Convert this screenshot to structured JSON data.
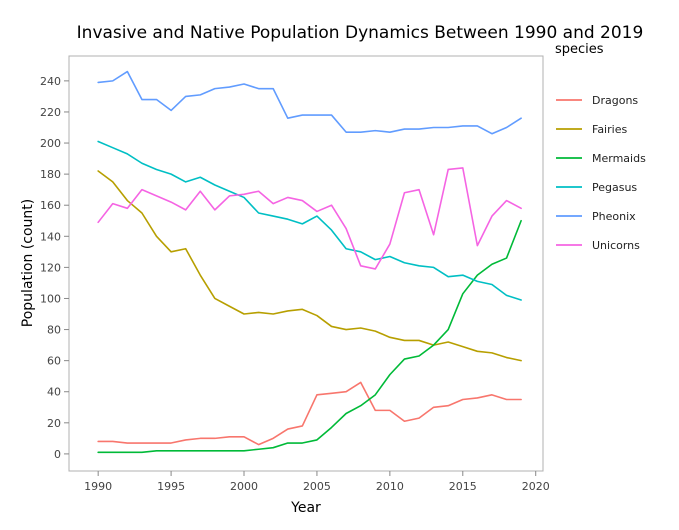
{
  "chart_data": {
    "type": "line",
    "title": "Invasive and Native Population Dynamics Between 1990 and 2019",
    "xlabel": "Year",
    "ylabel": "Population (count)",
    "xlim": [
      1988,
      2020.5
    ],
    "ylim": [
      -11,
      256
    ],
    "xticks": [
      1990,
      1995,
      2000,
      2005,
      2010,
      2015,
      2020
    ],
    "yticks": [
      0,
      20,
      40,
      60,
      80,
      100,
      120,
      140,
      160,
      180,
      200,
      220,
      240
    ],
    "grid": false,
    "legend": {
      "title": "species",
      "placement": "right"
    },
    "x": [
      1990,
      1991,
      1992,
      1993,
      1994,
      1995,
      1996,
      1997,
      1998,
      1999,
      2000,
      2001,
      2002,
      2003,
      2004,
      2005,
      2006,
      2007,
      2008,
      2009,
      2010,
      2011,
      2012,
      2013,
      2014,
      2015,
      2016,
      2017,
      2018,
      2019
    ],
    "series": [
      {
        "name": "Dragons",
        "color": "#f8766d",
        "values": [
          8,
          8,
          7,
          7,
          7,
          7,
          9,
          10,
          10,
          11,
          11,
          6,
          10,
          16,
          18,
          38,
          39,
          40,
          46,
          28,
          28,
          21,
          23,
          30,
          31,
          35,
          36,
          38,
          35,
          35
        ]
      },
      {
        "name": "Fairies",
        "color": "#b79f00",
        "values": [
          182,
          175,
          163,
          155,
          140,
          130,
          132,
          115,
          100,
          95,
          90,
          91,
          90,
          92,
          93,
          89,
          82,
          80,
          81,
          79,
          75,
          73,
          73,
          70,
          72,
          69,
          66,
          65,
          62,
          60
        ]
      },
      {
        "name": "Mermaids",
        "color": "#00ba38",
        "values": [
          1,
          1,
          1,
          1,
          2,
          2,
          2,
          2,
          2,
          2,
          2,
          3,
          4,
          7,
          7,
          9,
          17,
          26,
          31,
          38,
          51,
          61,
          63,
          70,
          80,
          103,
          115,
          122,
          126,
          150
        ]
      },
      {
        "name": "Pegasus",
        "color": "#00bfc4",
        "values": [
          201,
          197,
          193,
          187,
          183,
          180,
          175,
          178,
          173,
          169,
          165,
          155,
          153,
          151,
          148,
          153,
          144,
          132,
          130,
          125,
          127,
          123,
          121,
          120,
          114,
          115,
          111,
          109,
          102,
          99
        ]
      },
      {
        "name": "Pheonix",
        "color": "#619cff",
        "values": [
          239,
          240,
          246,
          228,
          228,
          221,
          230,
          231,
          235,
          236,
          238,
          235,
          235,
          216,
          218,
          218,
          218,
          207,
          207,
          208,
          207,
          209,
          209,
          210,
          210,
          211,
          211,
          206,
          210,
          216
        ]
      },
      {
        "name": "Unicorns",
        "color": "#f564e3",
        "values": [
          149,
          161,
          158,
          170,
          166,
          162,
          157,
          169,
          157,
          166,
          167,
          169,
          161,
          165,
          163,
          156,
          160,
          145,
          121,
          119,
          135,
          168,
          170,
          141,
          183,
          184,
          134,
          153,
          163,
          158
        ]
      }
    ]
  }
}
